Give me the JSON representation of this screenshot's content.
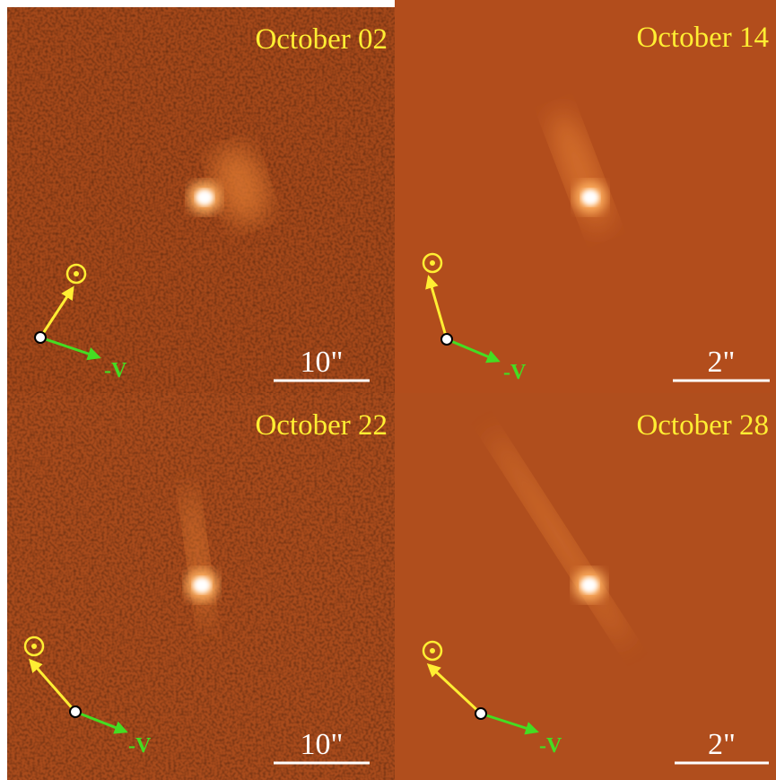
{
  "panels": [
    {
      "date": "October 02",
      "scale": "10\"",
      "velocity": "-V"
    },
    {
      "date": "October 14",
      "scale": "2\"",
      "velocity": "-V"
    },
    {
      "date": "October 22",
      "scale": "10\"",
      "velocity": "-V"
    },
    {
      "date": "October 28",
      "scale": "2\"",
      "velocity": "-V"
    }
  ]
}
